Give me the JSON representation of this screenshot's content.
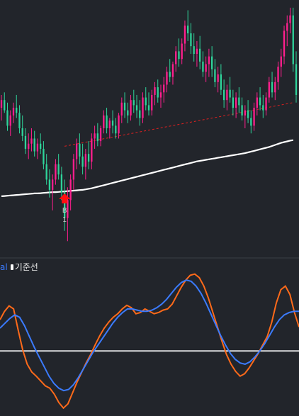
{
  "chart_data": [
    {
      "type": "candlestick",
      "panel": "price",
      "up_color": "#ff1f8e",
      "down_color": "#2fd39a",
      "candles": [
        {
          "o": 98,
          "h": 103,
          "l": 93,
          "c": 101
        },
        {
          "o": 101,
          "h": 104,
          "l": 96,
          "c": 97
        },
        {
          "o": 97,
          "h": 100,
          "l": 89,
          "c": 91
        },
        {
          "o": 91,
          "h": 97,
          "l": 87,
          "c": 95
        },
        {
          "o": 95,
          "h": 100,
          "l": 92,
          "c": 98
        },
        {
          "o": 98,
          "h": 103,
          "l": 94,
          "c": 96
        },
        {
          "o": 96,
          "h": 99,
          "l": 88,
          "c": 90
        },
        {
          "o": 90,
          "h": 95,
          "l": 85,
          "c": 87
        },
        {
          "o": 87,
          "h": 90,
          "l": 80,
          "c": 82
        },
        {
          "o": 82,
          "h": 88,
          "l": 78,
          "c": 84
        },
        {
          "o": 84,
          "h": 90,
          "l": 81,
          "c": 86
        },
        {
          "o": 86,
          "h": 89,
          "l": 79,
          "c": 81
        },
        {
          "o": 81,
          "h": 86,
          "l": 78,
          "c": 84
        },
        {
          "o": 84,
          "h": 88,
          "l": 80,
          "c": 82
        },
        {
          "o": 82,
          "h": 85,
          "l": 74,
          "c": 76
        },
        {
          "o": 76,
          "h": 80,
          "l": 68,
          "c": 70
        },
        {
          "o": 70,
          "h": 74,
          "l": 63,
          "c": 66
        },
        {
          "o": 66,
          "h": 72,
          "l": 58,
          "c": 70
        },
        {
          "o": 70,
          "h": 78,
          "l": 68,
          "c": 76
        },
        {
          "o": 76,
          "h": 80,
          "l": 70,
          "c": 72
        },
        {
          "o": 72,
          "h": 75,
          "l": 62,
          "c": 65
        },
        {
          "o": 65,
          "h": 70,
          "l": 50,
          "c": 55
        },
        {
          "o": 55,
          "h": 67,
          "l": 46,
          "c": 62
        },
        {
          "o": 62,
          "h": 72,
          "l": 58,
          "c": 70
        },
        {
          "o": 70,
          "h": 80,
          "l": 66,
          "c": 78
        },
        {
          "o": 78,
          "h": 86,
          "l": 74,
          "c": 84
        },
        {
          "o": 84,
          "h": 88,
          "l": 76,
          "c": 79
        },
        {
          "o": 79,
          "h": 84,
          "l": 72,
          "c": 75
        },
        {
          "o": 75,
          "h": 82,
          "l": 70,
          "c": 80
        },
        {
          "o": 80,
          "h": 85,
          "l": 74,
          "c": 77
        },
        {
          "o": 77,
          "h": 88,
          "l": 74,
          "c": 86
        },
        {
          "o": 86,
          "h": 91,
          "l": 82,
          "c": 88
        },
        {
          "o": 88,
          "h": 92,
          "l": 83,
          "c": 85
        },
        {
          "o": 85,
          "h": 91,
          "l": 83,
          "c": 90
        },
        {
          "o": 90,
          "h": 97,
          "l": 88,
          "c": 95
        },
        {
          "o": 95,
          "h": 98,
          "l": 88,
          "c": 90
        },
        {
          "o": 90,
          "h": 94,
          "l": 86,
          "c": 93
        },
        {
          "o": 93,
          "h": 97,
          "l": 88,
          "c": 91
        },
        {
          "o": 91,
          "h": 94,
          "l": 86,
          "c": 88
        },
        {
          "o": 88,
          "h": 96,
          "l": 86,
          "c": 95
        },
        {
          "o": 95,
          "h": 102,
          "l": 92,
          "c": 100
        },
        {
          "o": 100,
          "h": 104,
          "l": 94,
          "c": 97
        },
        {
          "o": 97,
          "h": 100,
          "l": 92,
          "c": 95
        },
        {
          "o": 95,
          "h": 103,
          "l": 93,
          "c": 101
        },
        {
          "o": 101,
          "h": 105,
          "l": 96,
          "c": 99
        },
        {
          "o": 99,
          "h": 103,
          "l": 94,
          "c": 97
        },
        {
          "o": 97,
          "h": 101,
          "l": 91,
          "c": 94
        },
        {
          "o": 94,
          "h": 104,
          "l": 92,
          "c": 102
        },
        {
          "o": 102,
          "h": 106,
          "l": 97,
          "c": 99
        },
        {
          "o": 99,
          "h": 104,
          "l": 95,
          "c": 97
        },
        {
          "o": 97,
          "h": 105,
          "l": 95,
          "c": 103
        },
        {
          "o": 103,
          "h": 108,
          "l": 99,
          "c": 106
        },
        {
          "o": 106,
          "h": 109,
          "l": 100,
          "c": 102
        },
        {
          "o": 102,
          "h": 107,
          "l": 98,
          "c": 104
        },
        {
          "o": 104,
          "h": 110,
          "l": 100,
          "c": 107
        },
        {
          "o": 107,
          "h": 114,
          "l": 104,
          "c": 112
        },
        {
          "o": 112,
          "h": 117,
          "l": 108,
          "c": 110
        },
        {
          "o": 110,
          "h": 116,
          "l": 107,
          "c": 115
        },
        {
          "o": 115,
          "h": 122,
          "l": 112,
          "c": 120
        },
        {
          "o": 120,
          "h": 125,
          "l": 114,
          "c": 117
        },
        {
          "o": 117,
          "h": 125,
          "l": 115,
          "c": 123
        },
        {
          "o": 123,
          "h": 132,
          "l": 120,
          "c": 130
        },
        {
          "o": 130,
          "h": 136,
          "l": 124,
          "c": 127
        },
        {
          "o": 127,
          "h": 131,
          "l": 119,
          "c": 122
        },
        {
          "o": 122,
          "h": 127,
          "l": 116,
          "c": 119
        },
        {
          "o": 119,
          "h": 124,
          "l": 114,
          "c": 121
        },
        {
          "o": 121,
          "h": 126,
          "l": 113,
          "c": 116
        },
        {
          "o": 116,
          "h": 120,
          "l": 110,
          "c": 112
        },
        {
          "o": 112,
          "h": 118,
          "l": 108,
          "c": 115
        },
        {
          "o": 115,
          "h": 121,
          "l": 110,
          "c": 118
        },
        {
          "o": 118,
          "h": 122,
          "l": 110,
          "c": 113
        },
        {
          "o": 113,
          "h": 117,
          "l": 106,
          "c": 108
        },
        {
          "o": 108,
          "h": 114,
          "l": 104,
          "c": 111
        },
        {
          "o": 111,
          "h": 115,
          "l": 103,
          "c": 105
        },
        {
          "o": 105,
          "h": 109,
          "l": 98,
          "c": 101
        },
        {
          "o": 101,
          "h": 107,
          "l": 97,
          "c": 105
        },
        {
          "o": 105,
          "h": 110,
          "l": 100,
          "c": 102
        },
        {
          "o": 102,
          "h": 105,
          "l": 95,
          "c": 98
        },
        {
          "o": 98,
          "h": 104,
          "l": 94,
          "c": 102
        },
        {
          "o": 102,
          "h": 106,
          "l": 96,
          "c": 99
        },
        {
          "o": 99,
          "h": 102,
          "l": 93,
          "c": 95
        },
        {
          "o": 95,
          "h": 99,
          "l": 90,
          "c": 97
        },
        {
          "o": 97,
          "h": 101,
          "l": 92,
          "c": 94
        },
        {
          "o": 94,
          "h": 97,
          "l": 88,
          "c": 91
        },
        {
          "o": 91,
          "h": 100,
          "l": 89,
          "c": 98
        },
        {
          "o": 98,
          "h": 104,
          "l": 95,
          "c": 102
        },
        {
          "o": 102,
          "h": 106,
          "l": 97,
          "c": 99
        },
        {
          "o": 99,
          "h": 103,
          "l": 94,
          "c": 97
        },
        {
          "o": 97,
          "h": 104,
          "l": 95,
          "c": 102
        },
        {
          "o": 102,
          "h": 110,
          "l": 100,
          "c": 108
        },
        {
          "o": 108,
          "h": 112,
          "l": 102,
          "c": 104
        },
        {
          "o": 104,
          "h": 110,
          "l": 101,
          "c": 108
        },
        {
          "o": 108,
          "h": 116,
          "l": 105,
          "c": 114
        },
        {
          "o": 114,
          "h": 121,
          "l": 110,
          "c": 118
        },
        {
          "o": 118,
          "h": 130,
          "l": 115,
          "c": 128
        },
        {
          "o": 128,
          "h": 134,
          "l": 122,
          "c": 131
        },
        {
          "o": 131,
          "h": 137,
          "l": 127,
          "c": 134
        },
        {
          "o": 134,
          "h": 137,
          "l": 112,
          "c": 115
        },
        {
          "o": 115,
          "h": 120,
          "l": 100,
          "c": 103
        }
      ],
      "lines": [
        {
          "name": "moving-average",
          "color": "#ffffff",
          "values": [
            63.5,
            63.6,
            63.7,
            63.8,
            63.9,
            64.0,
            64.1,
            64.2,
            64.3,
            64.4,
            64.5,
            64.6,
            64.6,
            64.7,
            64.8,
            64.9,
            65.0,
            65.1,
            65.1,
            65.2,
            65.3,
            65.4,
            65.5,
            65.6,
            65.7,
            65.8,
            65.9,
            66.0,
            66.2,
            66.4,
            66.6,
            66.9,
            67.2,
            67.5,
            67.8,
            68.1,
            68.4,
            68.7,
            69.0,
            69.3,
            69.6,
            69.9,
            70.2,
            70.5,
            70.8,
            71.1,
            71.4,
            71.7,
            72.0,
            72.3,
            72.6,
            72.9,
            73.2,
            73.5,
            73.8,
            74.1,
            74.4,
            74.7,
            75.0,
            75.3,
            75.6,
            75.9,
            76.2,
            76.5,
            76.8,
            77.1,
            77.3,
            77.5,
            77.7,
            77.9,
            78.1,
            78.3,
            78.5,
            78.7,
            78.9,
            79.1,
            79.3,
            79.5,
            79.7,
            79.9,
            80.1,
            80.3,
            80.6,
            80.9,
            81.2,
            81.5,
            81.8,
            82.1,
            82.4,
            82.7,
            83.1,
            83.5,
            83.9,
            84.3,
            84.6,
            84.9,
            85.2,
            85.4
          ]
        },
        {
          "name": "trendline",
          "color": "#e02020",
          "style": "dashed",
          "from": {
            "i": 21,
            "v": 83
          },
          "to": {
            "i": 97,
            "v": 100
          }
        }
      ],
      "signals": [
        {
          "index": 21,
          "type": "buy-arrow",
          "color": "#ff1010",
          "label": "B",
          "sublabel": "1"
        }
      ],
      "ylim": [
        40,
        140
      ]
    },
    {
      "type": "line",
      "panel": "oscillator",
      "legend": {
        "partial": "al",
        "label": "기준선"
      },
      "baseline": {
        "value": 0,
        "color": "#ffffff"
      },
      "ylim": [
        -1.0,
        1.3
      ],
      "series": [
        {
          "color": "#ff6a1a",
          "values": [
            0.52,
            0.66,
            0.75,
            0.7,
            0.35,
            0.02,
            -0.22,
            -0.35,
            -0.42,
            -0.5,
            -0.58,
            -0.62,
            -0.72,
            -0.86,
            -0.95,
            -0.88,
            -0.7,
            -0.52,
            -0.36,
            -0.2,
            -0.06,
            0.1,
            0.25,
            0.38,
            0.48,
            0.56,
            0.62,
            0.7,
            0.76,
            0.72,
            0.62,
            0.64,
            0.7,
            0.66,
            0.62,
            0.64,
            0.68,
            0.7,
            0.78,
            0.92,
            1.06,
            1.18,
            1.26,
            1.28,
            1.22,
            1.08,
            0.88,
            0.64,
            0.4,
            0.16,
            -0.06,
            -0.22,
            -0.34,
            -0.42,
            -0.38,
            -0.28,
            -0.16,
            -0.04,
            0.1,
            0.24,
            0.48,
            0.8,
            1.02,
            1.08,
            0.94,
            0.64,
            0.4
          ]
        },
        {
          "color": "#3b7bff",
          "values": [
            0.38,
            0.46,
            0.54,
            0.6,
            0.56,
            0.42,
            0.24,
            0.06,
            -0.1,
            -0.26,
            -0.42,
            -0.54,
            -0.62,
            -0.66,
            -0.64,
            -0.56,
            -0.44,
            -0.3,
            -0.16,
            -0.02,
            0.1,
            0.22,
            0.34,
            0.46,
            0.56,
            0.64,
            0.7,
            0.7,
            0.68,
            0.66,
            0.66,
            0.68,
            0.72,
            0.78,
            0.86,
            0.96,
            1.06,
            1.14,
            1.18,
            1.16,
            1.08,
            0.96,
            0.8,
            0.62,
            0.44,
            0.26,
            0.1,
            -0.04,
            -0.14,
            -0.2,
            -0.22,
            -0.18,
            -0.1,
            0.0,
            0.12,
            0.26,
            0.4,
            0.52,
            0.6,
            0.64,
            0.66,
            0.66
          ]
        }
      ]
    }
  ]
}
